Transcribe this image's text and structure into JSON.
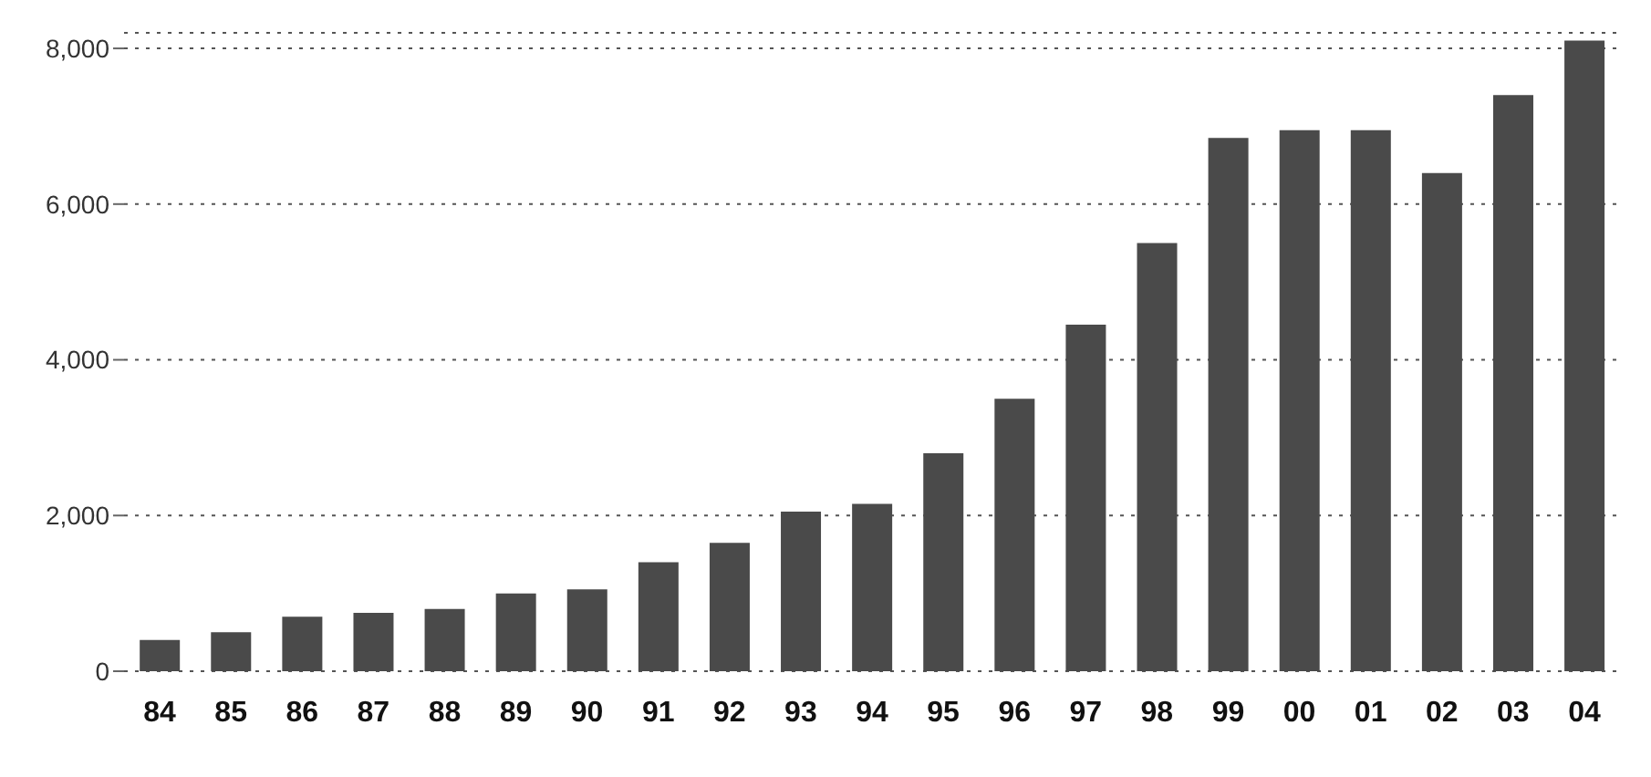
{
  "chart_data": {
    "type": "bar",
    "categories": [
      "84",
      "85",
      "86",
      "87",
      "88",
      "89",
      "90",
      "91",
      "92",
      "93",
      "94",
      "95",
      "96",
      "97",
      "98",
      "99",
      "00",
      "01",
      "02",
      "03",
      "04"
    ],
    "values": [
      400,
      500,
      700,
      750,
      800,
      1000,
      1050,
      1400,
      1650,
      2050,
      2150,
      2800,
      3500,
      4450,
      5500,
      6850,
      6950,
      6950,
      6400,
      7400,
      8100
    ],
    "color": "#4a4a4a",
    "ylim": [
      0,
      8200
    ],
    "yticks": [
      {
        "value": 0,
        "label": "0"
      },
      {
        "value": 2000,
        "label": "2,000"
      },
      {
        "value": 4000,
        "label": "4,000"
      },
      {
        "value": 6000,
        "label": "6,000"
      },
      {
        "value": 8000,
        "label": "8,000"
      }
    ],
    "grid": "y"
  }
}
